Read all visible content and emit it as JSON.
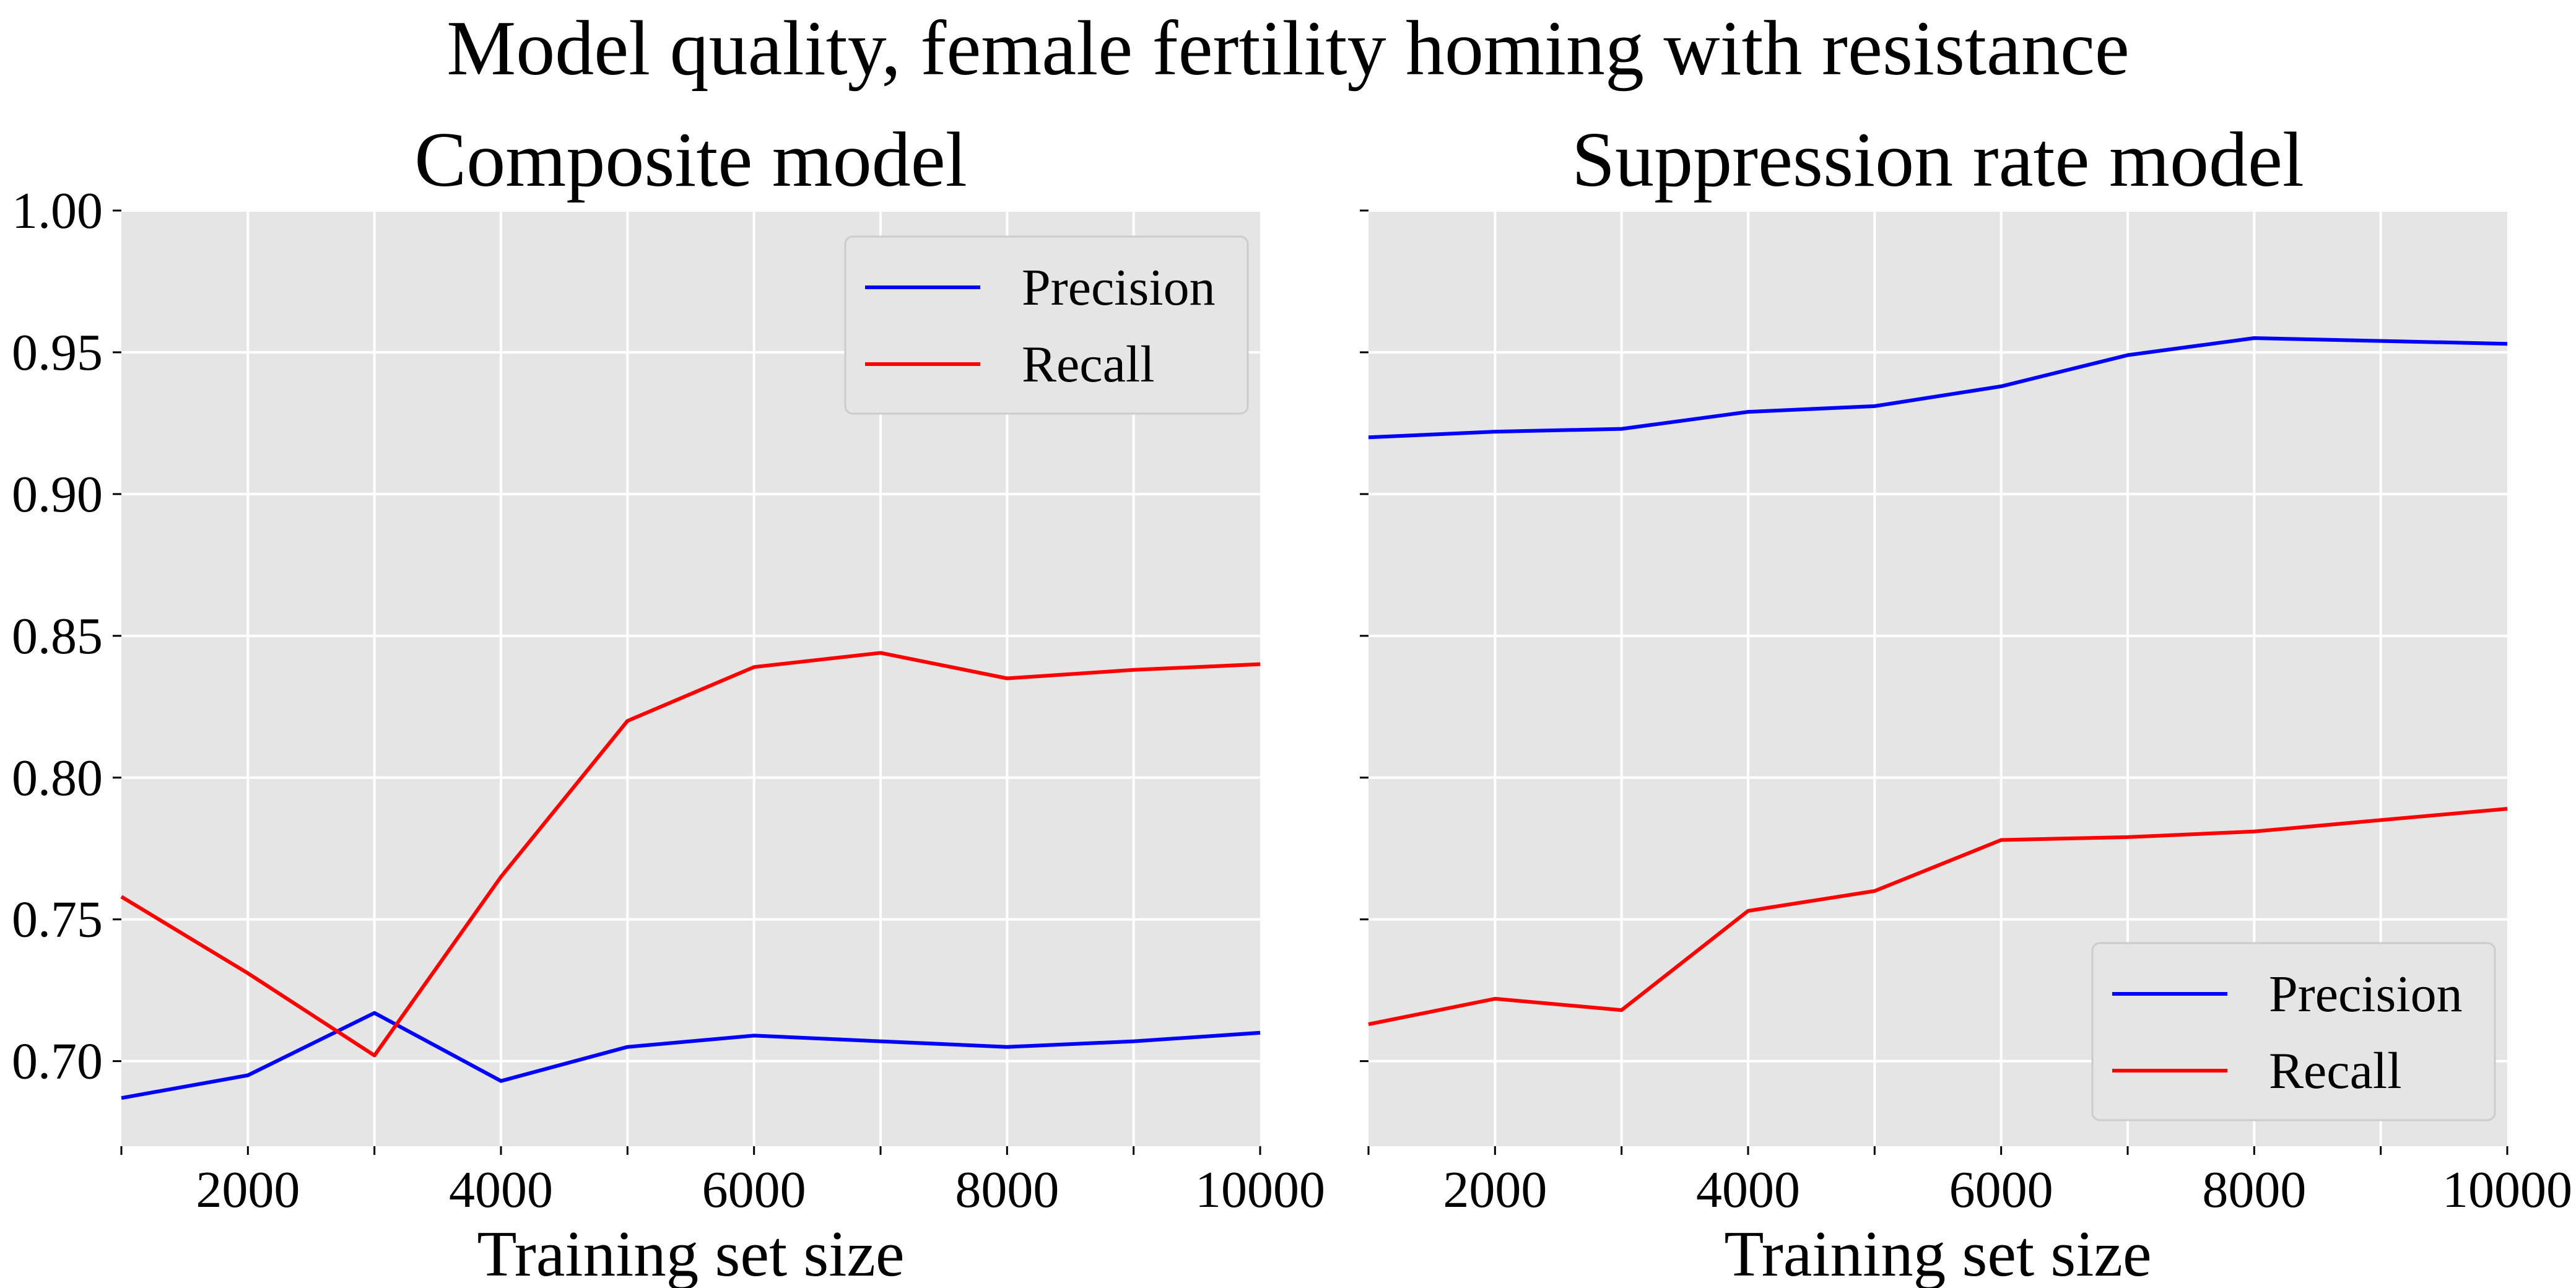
{
  "suptitle": "Model quality, female fertility homing with resistance",
  "colors": {
    "precision": "#0000ff",
    "recall": "#ff0000",
    "plot_bg": "#e5e5e5",
    "grid": "#ffffff"
  },
  "chart_data": [
    {
      "type": "line",
      "title": "Composite model",
      "xlabel": "Training set size",
      "ylabel": "",
      "xlim": [
        1000,
        10000
      ],
      "ylim": [
        0.67,
        1.0
      ],
      "x_ticks": [
        2000,
        4000,
        6000,
        8000,
        10000
      ],
      "y_ticks": [
        0.7,
        0.75,
        0.8,
        0.85,
        0.9,
        0.95,
        1.0
      ],
      "y_tick_labels": [
        "0.70",
        "0.75",
        "0.80",
        "0.85",
        "0.90",
        "0.95",
        "1.00"
      ],
      "grid": true,
      "legend_position": "top-right",
      "x": [
        1000,
        2000,
        3000,
        4000,
        5000,
        6000,
        7000,
        8000,
        9000,
        10000
      ],
      "series": [
        {
          "name": "Precision",
          "color": "#0000ff",
          "values": [
            0.687,
            0.695,
            0.717,
            0.693,
            0.705,
            0.709,
            0.707,
            0.705,
            0.707,
            0.71
          ]
        },
        {
          "name": "Recall",
          "color": "#ff0000",
          "values": [
            0.758,
            0.731,
            0.702,
            0.765,
            0.82,
            0.839,
            0.844,
            0.835,
            0.838,
            0.84
          ]
        }
      ]
    },
    {
      "type": "line",
      "title": "Suppression rate model",
      "xlabel": "Training set size",
      "ylabel": "",
      "xlim": [
        1000,
        10000
      ],
      "ylim": [
        0.67,
        1.0
      ],
      "x_ticks": [
        2000,
        4000,
        6000,
        8000,
        10000
      ],
      "y_ticks": [
        0.7,
        0.75,
        0.8,
        0.85,
        0.9,
        0.95,
        1.0
      ],
      "y_tick_labels": [],
      "grid": true,
      "legend_position": "bottom-right",
      "x": [
        1000,
        2000,
        3000,
        4000,
        5000,
        6000,
        7000,
        8000,
        9000,
        10000
      ],
      "series": [
        {
          "name": "Precision",
          "color": "#0000ff",
          "values": [
            0.92,
            0.922,
            0.923,
            0.929,
            0.931,
            0.938,
            0.949,
            0.955,
            0.954,
            0.953
          ]
        },
        {
          "name": "Recall",
          "color": "#ff0000",
          "values": [
            0.713,
            0.722,
            0.718,
            0.753,
            0.76,
            0.778,
            0.779,
            0.781,
            0.785,
            0.789
          ]
        }
      ]
    }
  ]
}
